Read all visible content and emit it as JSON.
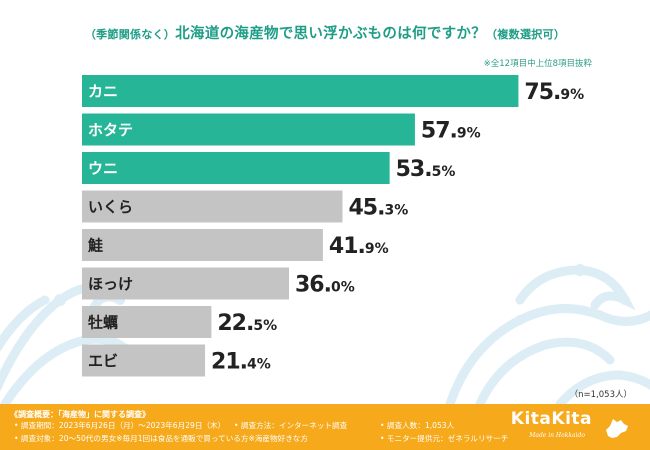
{
  "title": "（季節関係なく）北海道の海産物で思い浮かぶものは何ですか？（複数選択可）",
  "title_parts": {
    "prefix": "（季節関係なく）",
    "main": "北海道の海産物で思い浮かぶものは何ですか？",
    "suffix": "（複数選択可）"
  },
  "note": "※全12項目中上位8項目抜粋",
  "sample_size": "（n=1,053人）",
  "colors": {
    "highlight": "#27b597",
    "normal": "#c4c4c4",
    "wave": "#dcedf5",
    "footer": "#f6a91a"
  },
  "chart_data": {
    "type": "bar",
    "orientation": "horizontal",
    "title": "（季節関係なく）北海道の海産物で思い浮かぶものは何ですか？（複数選択可）",
    "categories": [
      "カニ",
      "ホタテ",
      "ウニ",
      "いくら",
      "鮭",
      "ほっけ",
      "牡蠣",
      "エビ"
    ],
    "values": [
      75.9,
      57.9,
      53.5,
      45.3,
      41.9,
      36.0,
      22.5,
      21.4
    ],
    "value_labels": [
      "75.9%",
      "57.9%",
      "53.5%",
      "45.3%",
      "41.9%",
      "36.0%",
      "22.5%",
      "21.4%"
    ],
    "highlighted_count": 3,
    "unit": "%",
    "xlim": [
      0,
      100
    ],
    "grid": false,
    "legend": "none"
  },
  "footer": {
    "heading": "《調査概要：「海産物」に関する調査》",
    "period": "調査期間：2023年6月26日（月）～2023年6月29日（木）",
    "method": "調査方法：インターネット調査",
    "count": "調査人数：1,053人",
    "target": "調査対象：20～50代の男女※毎月1回は食品を通販で買っている方※海産物好きな方",
    "provider": "モニター提供元：ゼネラルリサーチ",
    "logo_text": "KitaKita",
    "logo_sub": "Made in Hokkaido"
  }
}
